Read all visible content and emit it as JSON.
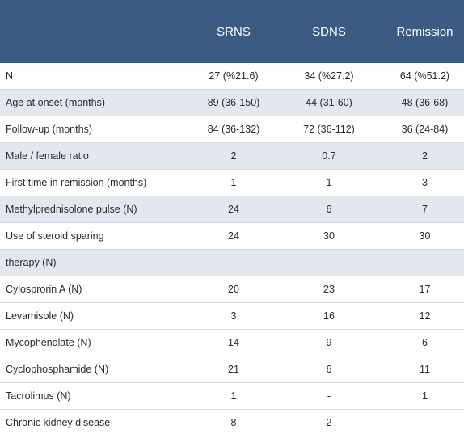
{
  "table": {
    "headers": [
      "",
      "SRNS",
      "SDNS",
      "Remission"
    ],
    "rows": [
      {
        "label": "N",
        "values": [
          "27 (%21.6)",
          "34 (%27.2)",
          "64 (%51.2)"
        ],
        "shaded": false
      },
      {
        "label": "Age at onset (months)",
        "values": [
          "89 (36-150)",
          "44 (31-60)",
          "48 (36-68)"
        ],
        "shaded": true
      },
      {
        "label": "Follow-up (months)",
        "values": [
          "84 (36-132)",
          "72 (36-112)",
          "36 (24-84)"
        ],
        "shaded": false
      },
      {
        "label": "Male / female ratio",
        "values": [
          "2",
          "0.7",
          "2"
        ],
        "shaded": true
      },
      {
        "label": "First time in remission (months)",
        "values": [
          "1",
          "1",
          "3"
        ],
        "shaded": false
      },
      {
        "label": "Methylprednisolone pulse (N)",
        "values": [
          "24",
          "6",
          "7"
        ],
        "shaded": true
      },
      {
        "label": "Use of steroid sparing",
        "values": [
          "24",
          "30",
          "30"
        ],
        "shaded": false
      },
      {
        "label": "therapy (N)",
        "values": [
          "",
          "",
          ""
        ],
        "shaded": true
      },
      {
        "label": "Cylosprorin A (N)",
        "values": [
          "20",
          "23",
          "17"
        ],
        "shaded": false
      },
      {
        "label": "Levamisole (N)",
        "values": [
          "3",
          "16",
          "12"
        ],
        "shaded": false
      },
      {
        "label": "Mycophenolate (N)",
        "values": [
          "14",
          "9",
          "6"
        ],
        "shaded": false
      },
      {
        "label": "Cyclophosphamide (N)",
        "values": [
          "21",
          "6",
          "11"
        ],
        "shaded": false
      },
      {
        "label": "Tacrolimus (N)",
        "values": [
          "1",
          "-",
          "1"
        ],
        "shaded": false
      },
      {
        "label": "Chronic kidney disease",
        "values": [
          "8",
          "2",
          "-"
        ],
        "shaded": false
      }
    ]
  }
}
